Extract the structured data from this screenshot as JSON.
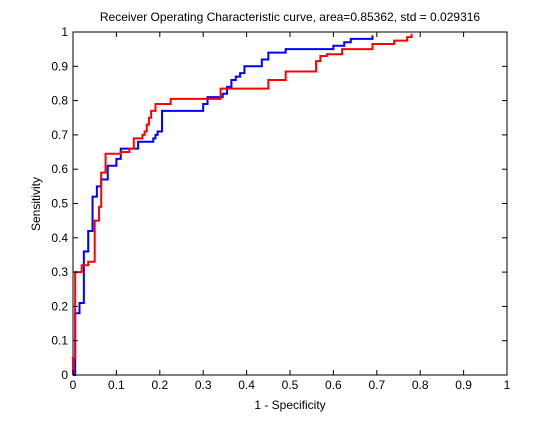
{
  "chart_data": {
    "type": "line",
    "title": "Receiver Operating Characteristic curve, area=0.85362, std = 0.029316",
    "xlabel": "1 - Specificity",
    "ylabel": "Sensitivity",
    "xlim": [
      0,
      1
    ],
    "ylim": [
      0,
      1
    ],
    "xticks": [
      0,
      0.1,
      0.2,
      0.3,
      0.4,
      0.5,
      0.6,
      0.7,
      0.8,
      0.9,
      1
    ],
    "yticks": [
      0,
      0.1,
      0.2,
      0.3,
      0.4,
      0.5,
      0.6,
      0.7,
      0.8,
      0.9,
      1
    ],
    "xtick_labels": [
      "0",
      "0.1",
      "0.2",
      "0.3",
      "0.4",
      "0.5",
      "0.6",
      "0.7",
      "0.8",
      "0.9",
      "1"
    ],
    "ytick_labels": [
      "0",
      "0.1",
      "0.2",
      "0.3",
      "0.4",
      "0.5",
      "0.6",
      "0.7",
      "0.8",
      "0.9",
      "1"
    ],
    "grid": false,
    "legend": "none",
    "series": [
      {
        "color": "#0000ff",
        "step": true,
        "x": [
          0,
          0.005,
          0.015,
          0.025,
          0.035,
          0.045,
          0.055,
          0.065,
          0.08,
          0.1,
          0.11,
          0.15,
          0.175,
          0.185,
          0.19,
          0.195,
          0.205,
          0.3,
          0.31,
          0.345,
          0.355,
          0.365,
          0.375,
          0.385,
          0.395,
          0.435,
          0.45,
          0.48,
          0.49,
          0.6,
          0.625,
          0.64,
          0.69
        ],
        "y": [
          0,
          0.18,
          0.21,
          0.36,
          0.42,
          0.52,
          0.55,
          0.57,
          0.61,
          0.63,
          0.66,
          0.68,
          0.68,
          0.69,
          0.7,
          0.71,
          0.77,
          0.79,
          0.81,
          0.82,
          0.84,
          0.86,
          0.87,
          0.88,
          0.9,
          0.92,
          0.94,
          0.94,
          0.95,
          0.96,
          0.97,
          0.98,
          0.99
        ]
      },
      {
        "color": "#ff0000",
        "step": true,
        "x": [
          0,
          0.005,
          0.02,
          0.035,
          0.05,
          0.06,
          0.065,
          0.075,
          0.11,
          0.13,
          0.14,
          0.16,
          0.165,
          0.17,
          0.175,
          0.18,
          0.19,
          0.225,
          0.34,
          0.45,
          0.49,
          0.56,
          0.57,
          0.585,
          0.62,
          0.69,
          0.74,
          0.77,
          0.78
        ],
        "y": [
          0.05,
          0.3,
          0.32,
          0.33,
          0.45,
          0.49,
          0.59,
          0.645,
          0.65,
          0.66,
          0.69,
          0.7,
          0.71,
          0.73,
          0.75,
          0.77,
          0.79,
          0.805,
          0.835,
          0.86,
          0.885,
          0.915,
          0.93,
          0.935,
          0.95,
          0.965,
          0.975,
          0.985,
          0.995
        ]
      }
    ]
  }
}
